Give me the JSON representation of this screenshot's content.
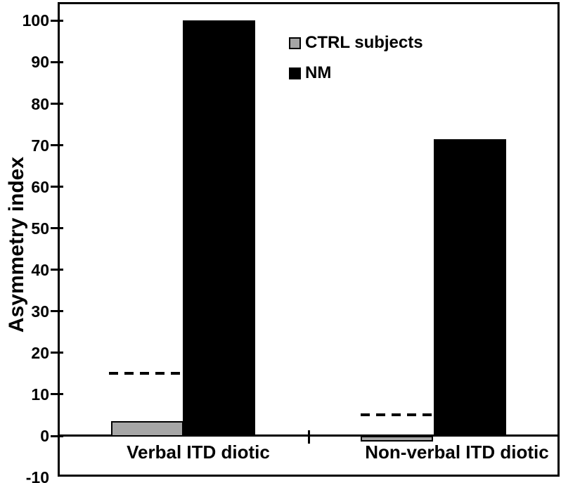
{
  "figure": {
    "background_color": "#ffffff",
    "axis_color": "#000000"
  },
  "chart_data": {
    "type": "bar",
    "title": "",
    "xlabel": "",
    "ylabel": "Asymmetry index",
    "categories": [
      "Verbal ITD diotic",
      "Non-verbal ITD diotic"
    ],
    "series": [
      {
        "name": "CTRL subjects",
        "color": "#a6a6a6",
        "values": [
          3.5,
          -1
        ]
      },
      {
        "name": "NM",
        "color": "#000000",
        "values": [
          100,
          71.5
        ]
      }
    ],
    "reference_lines": [
      {
        "category": "Verbal ITD diotic",
        "value": 15,
        "style": "dashed"
      },
      {
        "category": "Non-verbal ITD diotic",
        "value": 5,
        "style": "dashed"
      }
    ],
    "ylim": [
      -10,
      104
    ],
    "yticks": [
      100,
      90,
      80,
      70,
      60,
      50,
      40,
      30,
      20,
      10,
      0,
      -10
    ],
    "grid": false,
    "legend_position": "top-inside"
  }
}
